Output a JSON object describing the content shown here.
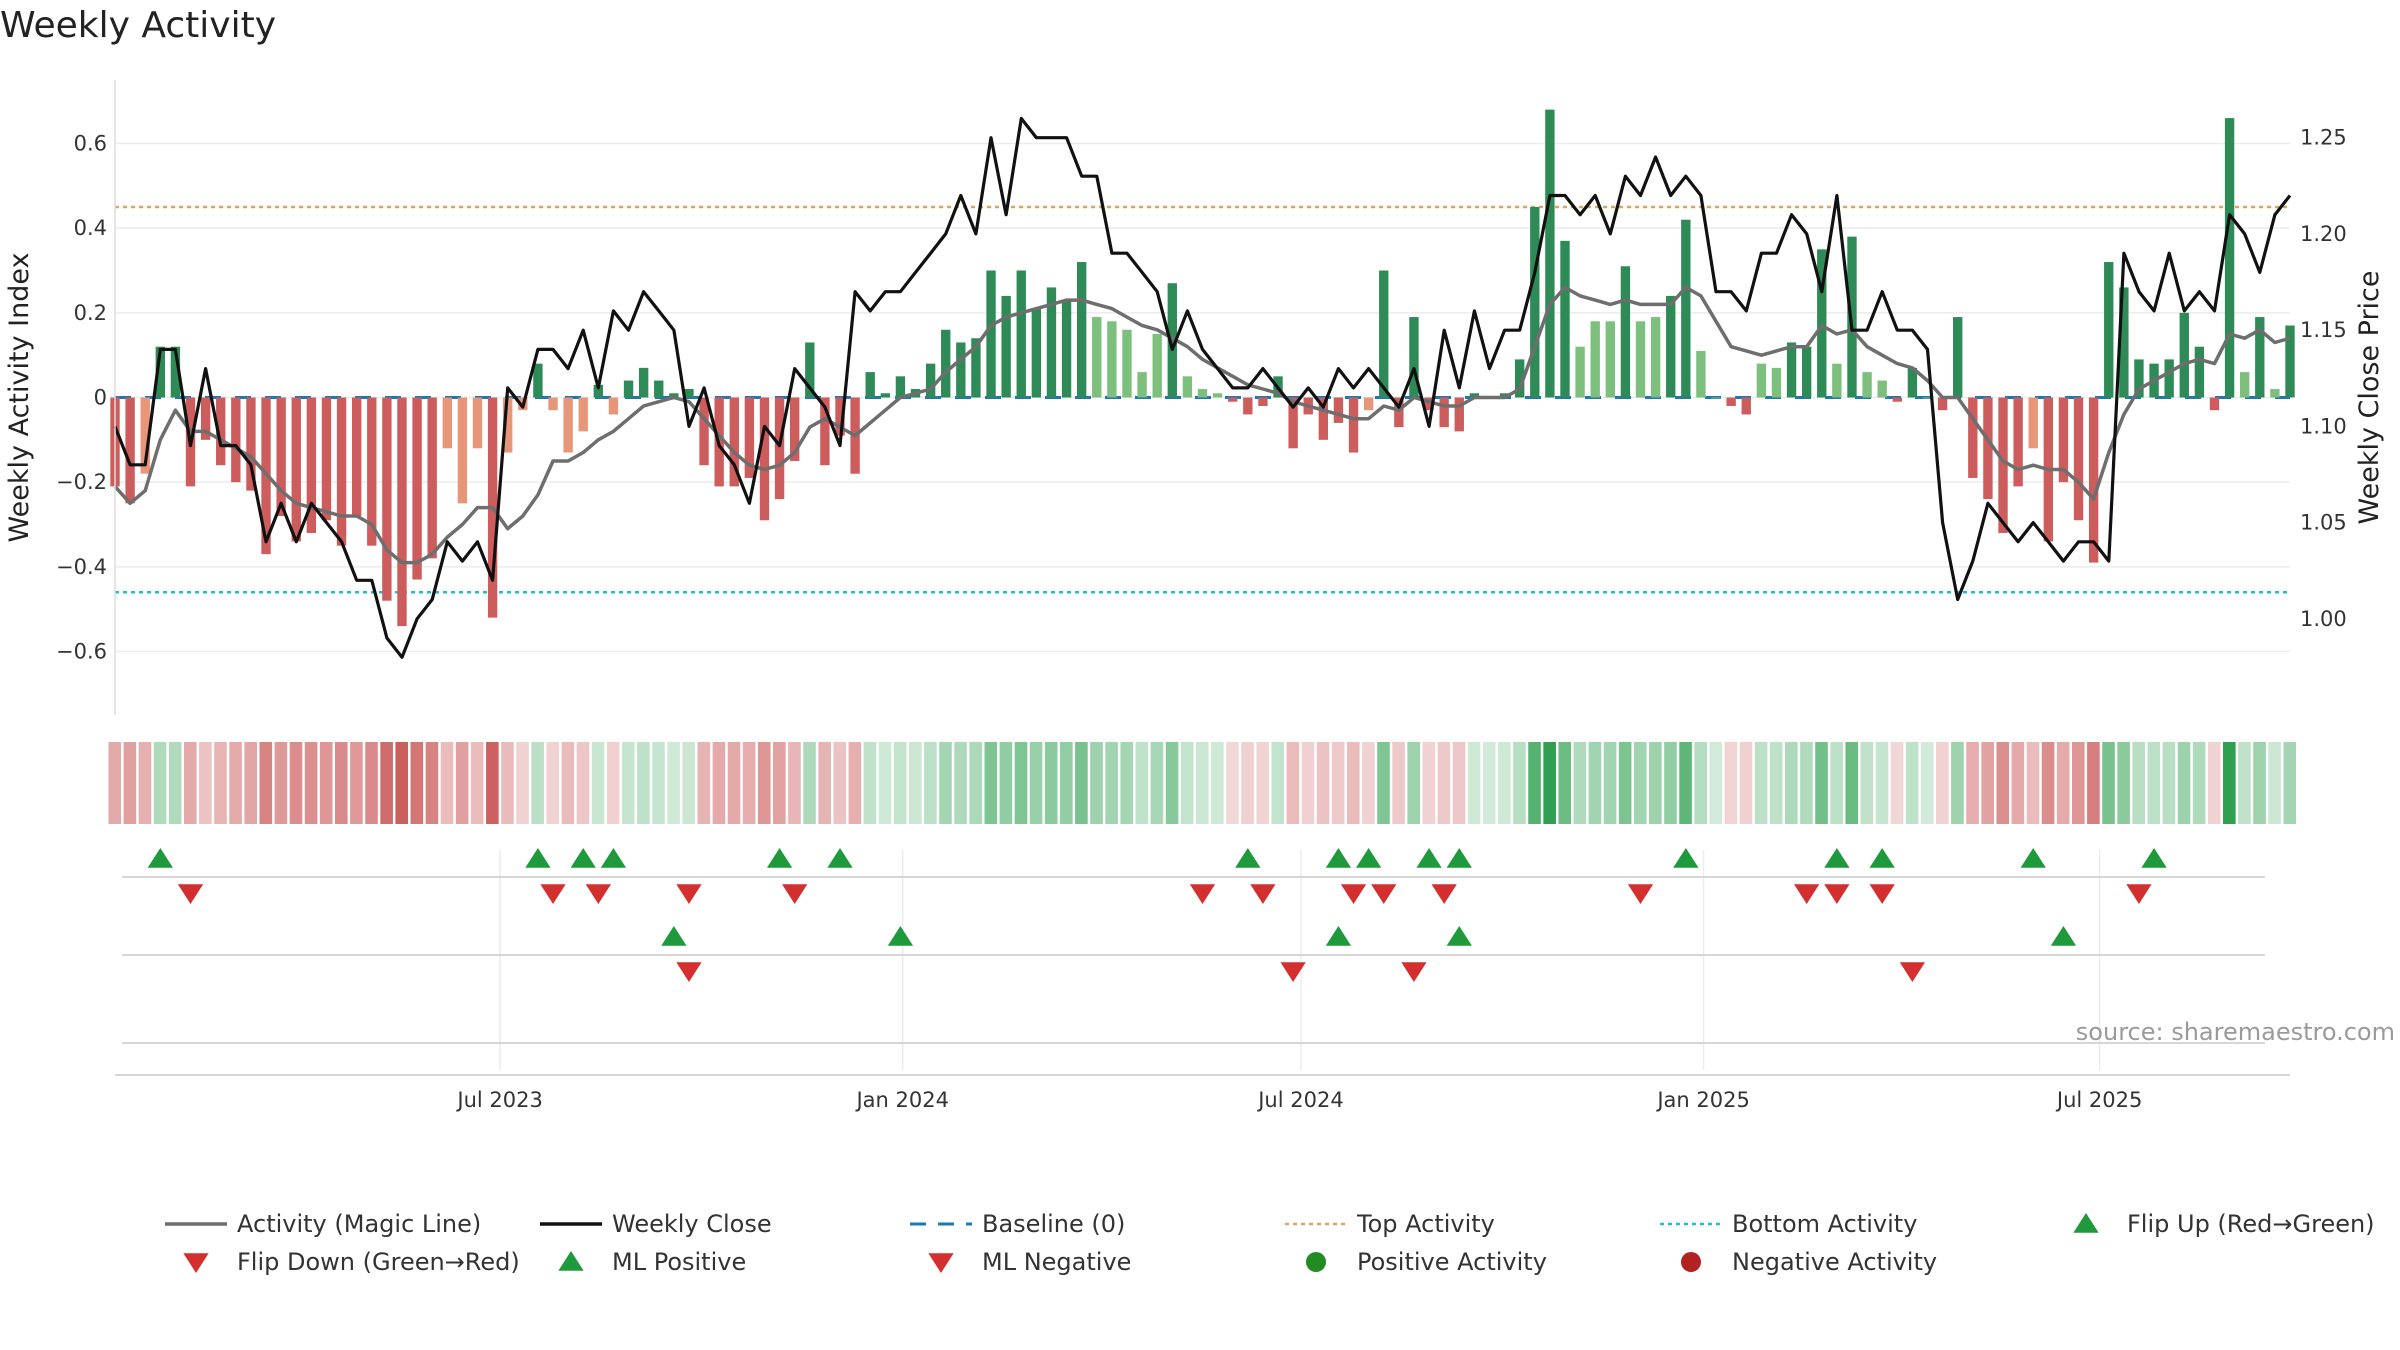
{
  "title": "Weekly Activity",
  "source": "source: sharemaestro.com",
  "colors": {
    "pos_dark": "#2e8b57",
    "pos_light": "#7dbf7d",
    "neg_dark": "#cd5c5c",
    "neg_light": "#e8967a",
    "magic": "#6e6e6e",
    "close": "#111111",
    "baseline": "#1f77b4",
    "top": "#e6a15a",
    "bottom": "#1fbfcf",
    "flip_up": "#1e9a3c",
    "flip_down": "#d32f2f",
    "pos_dot": "#228b22",
    "neg_dot": "#b22222"
  },
  "chart_data": {
    "type": "bar",
    "title": "Weekly Activity",
    "ylabel": "Weekly Activity Index",
    "y2label": "Weekly Close Price",
    "ylim": [
      -0.75,
      0.75
    ],
    "y2lim": [
      0.95,
      1.28
    ],
    "yticks": [
      "0.6",
      "0.4",
      "0.2",
      "0",
      "−0.2",
      "−0.4",
      "−0.6"
    ],
    "ytick_values": [
      0.6,
      0.4,
      0.2,
      0,
      -0.2,
      -0.4,
      -0.6
    ],
    "y2ticks": [
      "1.25",
      "1.20",
      "1.15",
      "1.10",
      "1.05",
      "1.00"
    ],
    "y2tick_values": [
      1.25,
      1.2,
      1.15,
      1.1,
      1.05,
      1.0
    ],
    "x_start": "2023-01-06",
    "x_end": "2025-09-26",
    "x_ticks": [
      {
        "date": "2023-07-01",
        "label": "Jul 2023"
      },
      {
        "date": "2024-01-01",
        "label": "Jan 2024"
      },
      {
        "date": "2024-07-01",
        "label": "Jul 2024"
      },
      {
        "date": "2025-01-01",
        "label": "Jan 2025"
      },
      {
        "date": "2025-07-01",
        "label": "Jul 2025"
      }
    ],
    "top_activity": 0.45,
    "bottom_activity": -0.46,
    "baseline": 0,
    "activity": [
      -0.21,
      -0.25,
      -0.18,
      0.12,
      0.12,
      -0.21,
      -0.1,
      -0.16,
      -0.2,
      -0.22,
      -0.37,
      -0.28,
      -0.34,
      -0.32,
      -0.29,
      -0.35,
      -0.28,
      -0.35,
      -0.48,
      -0.54,
      -0.43,
      -0.38,
      -0.12,
      -0.25,
      -0.12,
      -0.52,
      -0.13,
      -0.03,
      0.08,
      -0.03,
      -0.13,
      -0.08,
      0.03,
      -0.04,
      0.04,
      0.07,
      0.04,
      0.01,
      0.02,
      -0.16,
      -0.21,
      -0.21,
      -0.19,
      -0.29,
      -0.24,
      -0.15,
      0.13,
      -0.16,
      -0.09,
      -0.18,
      0.06,
      0.01,
      0.05,
      0.02,
      0.08,
      0.16,
      0.13,
      0.14,
      0.3,
      0.24,
      0.3,
      0.21,
      0.26,
      0.23,
      0.32,
      0.19,
      0.18,
      0.16,
      0.06,
      0.15,
      0.27,
      0.05,
      0.02,
      0.01,
      -0.01,
      -0.04,
      -0.02,
      0.05,
      -0.12,
      -0.04,
      -0.1,
      -0.06,
      -0.13,
      -0.03,
      0.3,
      -0.07,
      0.19,
      -0.03,
      -0.07,
      -0.08,
      0.01,
      0.0,
      0.01,
      0.09,
      0.45,
      0.68,
      0.37,
      0.12,
      0.18,
      0.18,
      0.31,
      0.18,
      0.19,
      0.24,
      0.42,
      0.11,
      0.0,
      -0.02,
      -0.04,
      0.08,
      0.07,
      0.13,
      0.12,
      0.35,
      0.08,
      0.38,
      0.06,
      0.04,
      -0.01,
      0.07,
      0.0,
      -0.03,
      0.19,
      -0.19,
      -0.24,
      -0.32,
      -0.21,
      -0.12,
      -0.34,
      -0.2,
      -0.29,
      -0.39,
      0.32,
      0.26,
      0.09,
      0.08,
      0.09,
      0.2,
      0.12,
      -0.03,
      0.66,
      0.06,
      0.19,
      0.02,
      0.17
    ],
    "magic_line": [
      -0.21,
      -0.25,
      -0.22,
      -0.1,
      -0.03,
      -0.08,
      -0.08,
      -0.1,
      -0.12,
      -0.14,
      -0.18,
      -0.22,
      -0.25,
      -0.26,
      -0.27,
      -0.28,
      -0.28,
      -0.3,
      -0.36,
      -0.39,
      -0.39,
      -0.37,
      -0.33,
      -0.3,
      -0.26,
      -0.26,
      -0.31,
      -0.28,
      -0.23,
      -0.15,
      -0.15,
      -0.13,
      -0.1,
      -0.08,
      -0.05,
      -0.02,
      -0.01,
      0.0,
      -0.01,
      -0.05,
      -0.09,
      -0.13,
      -0.16,
      -0.17,
      -0.16,
      -0.13,
      -0.07,
      -0.05,
      -0.07,
      -0.09,
      -0.06,
      -0.03,
      0.0,
      0.01,
      0.02,
      0.06,
      0.09,
      0.12,
      0.17,
      0.19,
      0.2,
      0.21,
      0.22,
      0.23,
      0.23,
      0.22,
      0.21,
      0.19,
      0.17,
      0.16,
      0.14,
      0.12,
      0.09,
      0.07,
      0.05,
      0.03,
      0.02,
      0.01,
      -0.01,
      -0.02,
      -0.03,
      -0.04,
      -0.05,
      -0.05,
      -0.02,
      -0.03,
      0.0,
      -0.01,
      -0.02,
      -0.02,
      0.0,
      0.0,
      0.0,
      0.02,
      0.12,
      0.22,
      0.26,
      0.24,
      0.23,
      0.22,
      0.23,
      0.22,
      0.22,
      0.22,
      0.26,
      0.24,
      0.18,
      0.12,
      0.11,
      0.1,
      0.11,
      0.12,
      0.12,
      0.17,
      0.15,
      0.16,
      0.12,
      0.1,
      0.08,
      0.07,
      0.04,
      0.0,
      0.0,
      -0.05,
      -0.1,
      -0.15,
      -0.17,
      -0.16,
      -0.17,
      -0.17,
      -0.2,
      -0.24,
      -0.13,
      -0.04,
      0.02,
      0.04,
      0.06,
      0.08,
      0.09,
      0.08,
      0.15,
      0.14,
      0.16,
      0.13,
      0.14
    ],
    "weekly_close": [
      1.1,
      1.08,
      1.08,
      1.14,
      1.14,
      1.09,
      1.13,
      1.09,
      1.09,
      1.08,
      1.04,
      1.06,
      1.04,
      1.06,
      1.05,
      1.04,
      1.02,
      1.02,
      0.99,
      0.98,
      1.0,
      1.01,
      1.04,
      1.03,
      1.04,
      1.02,
      1.12,
      1.11,
      1.14,
      1.14,
      1.13,
      1.15,
      1.12,
      1.16,
      1.15,
      1.17,
      1.16,
      1.15,
      1.1,
      1.12,
      1.09,
      1.08,
      1.06,
      1.1,
      1.09,
      1.13,
      1.12,
      1.11,
      1.09,
      1.17,
      1.16,
      1.17,
      1.17,
      1.18,
      1.19,
      1.2,
      1.22,
      1.2,
      1.25,
      1.21,
      1.26,
      1.25,
      1.25,
      1.25,
      1.23,
      1.23,
      1.19,
      1.19,
      1.18,
      1.17,
      1.14,
      1.16,
      1.14,
      1.13,
      1.12,
      1.12,
      1.13,
      1.12,
      1.11,
      1.12,
      1.11,
      1.13,
      1.12,
      1.13,
      1.12,
      1.11,
      1.13,
      1.1,
      1.15,
      1.12,
      1.16,
      1.13,
      1.15,
      1.15,
      1.18,
      1.22,
      1.22,
      1.21,
      1.22,
      1.2,
      1.23,
      1.22,
      1.24,
      1.22,
      1.23,
      1.22,
      1.17,
      1.17,
      1.16,
      1.19,
      1.19,
      1.21,
      1.2,
      1.17,
      1.22,
      1.15,
      1.15,
      1.17,
      1.15,
      1.15,
      1.14,
      1.05,
      1.01,
      1.03,
      1.06,
      1.05,
      1.04,
      1.05,
      1.04,
      1.03,
      1.04,
      1.04,
      1.03,
      1.19,
      1.17,
      1.16,
      1.19,
      1.16,
      1.17,
      1.16,
      1.21,
      1.2,
      1.18,
      1.21,
      1.22
    ]
  },
  "flip_rows": {
    "row1_up": [
      3,
      28,
      31,
      33,
      44,
      48,
      75,
      81,
      83,
      87,
      89,
      104,
      114,
      117,
      127,
      135
    ],
    "row1_down": [
      5,
      29,
      32,
      38,
      45,
      72,
      76,
      82,
      84,
      88,
      101,
      112,
      114,
      117,
      134
    ],
    "row2_up": [
      37,
      52,
      81,
      89,
      129
    ],
    "row2_down": [
      38,
      78,
      86,
      119
    ]
  },
  "legend": [
    {
      "label": "Activity (Magic Line)",
      "kind": "line",
      "color": "#6e6e6e"
    },
    {
      "label": "Weekly Close",
      "kind": "line",
      "color": "#111111"
    },
    {
      "label": "Baseline (0)",
      "kind": "dash",
      "color": "#1f77b4"
    },
    {
      "label": "Top Activity",
      "kind": "dot-line",
      "color": "#e6a15a"
    },
    {
      "label": "Bottom Activity",
      "kind": "dot-line",
      "color": "#1fbfcf"
    },
    {
      "label": "Flip Up (Red→Green)",
      "kind": "tri-up",
      "color": "#1e9a3c"
    },
    {
      "label": "Flip Down (Green→Red)",
      "kind": "tri-down",
      "color": "#d32f2f"
    },
    {
      "label": "ML Positive",
      "kind": "tri-up",
      "color": "#1e9a3c"
    },
    {
      "label": "ML Negative",
      "kind": "tri-down",
      "color": "#d32f2f"
    },
    {
      "label": "Positive Activity",
      "kind": "circle",
      "color": "#228b22"
    },
    {
      "label": "Negative Activity",
      "kind": "circle",
      "color": "#b22222"
    }
  ]
}
